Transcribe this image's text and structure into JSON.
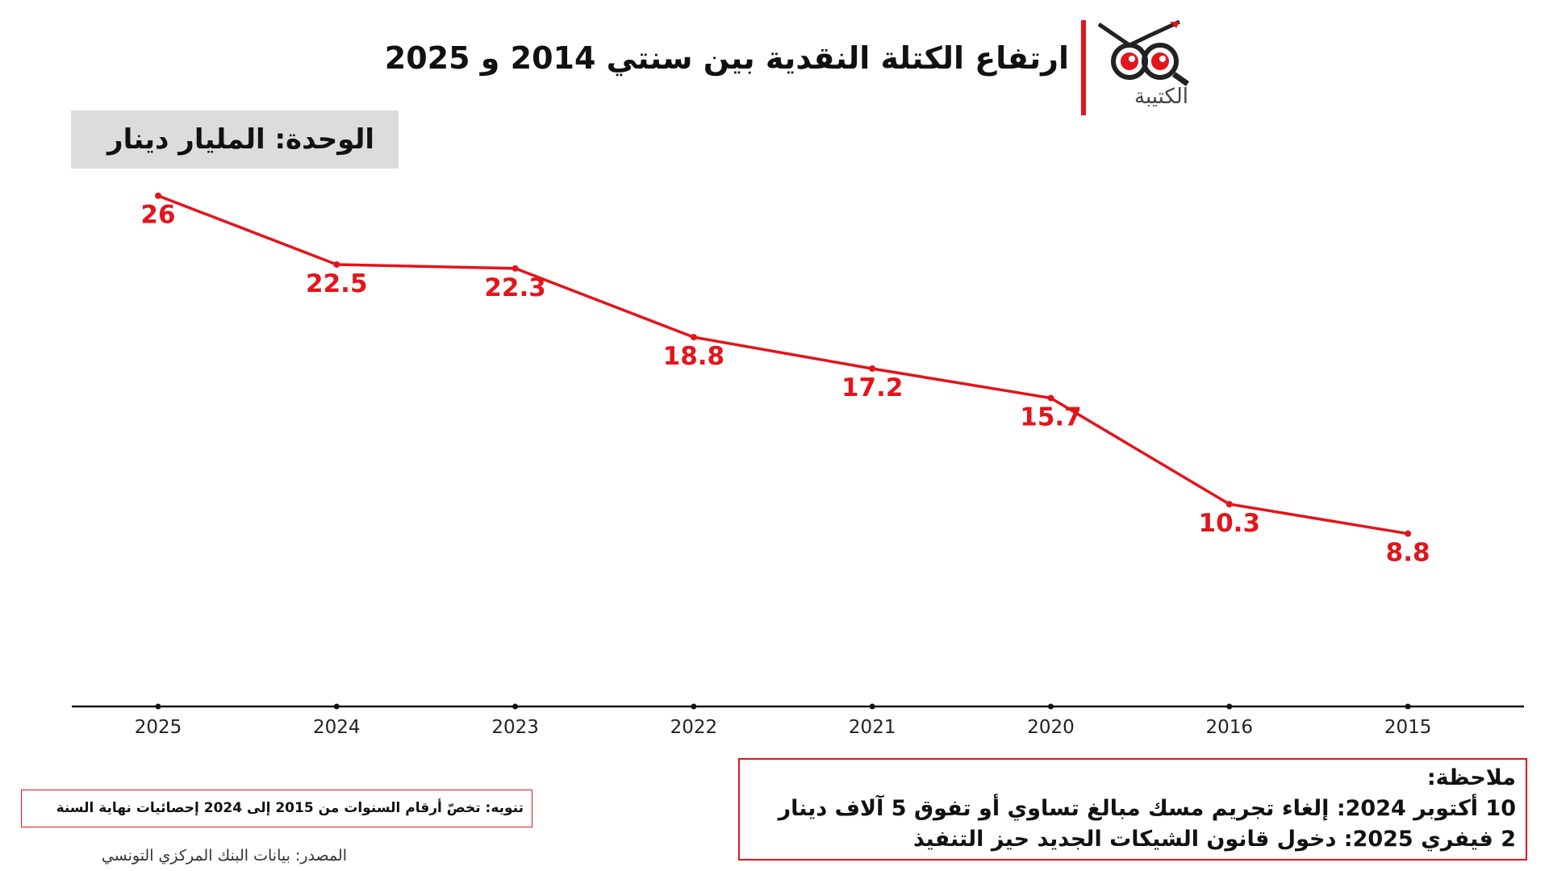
{
  "header": {
    "title": "ارتفاع الكتلة النقدية بين سنتي 2014 و 2025",
    "logo_text": "الكتيبة"
  },
  "chart_data": {
    "type": "line",
    "unit_label": "الوحدة: المليار دينار",
    "categories": [
      "2025",
      "2024",
      "2023",
      "2022",
      "2021",
      "2020",
      "2016",
      "2015"
    ],
    "series": [
      {
        "name": "الكتلة النقدية",
        "color": "#e3141b",
        "values": [
          26,
          22.5,
          22.3,
          18.8,
          17.2,
          15.7,
          10.3,
          8.8
        ]
      }
    ],
    "ylim": [
      0,
      28
    ]
  },
  "note": {
    "heading": "ملاحظة:",
    "lines": [
      "10 أكتوبر 2024: إلغاء تجريم مسك مبالغ تساوي أو تفوق 5 آلاف دينار",
      "2 فيفري 2025: دخول قانون الشيكات الجديد حيز التنفيذ"
    ]
  },
  "disclaimer": "تنويه: تخصّ أرقام السنوات من 2015 إلى 2024 إحصائيات نهاية السنة",
  "source": "المصدر: بيانات البنك المركزي التونسي"
}
